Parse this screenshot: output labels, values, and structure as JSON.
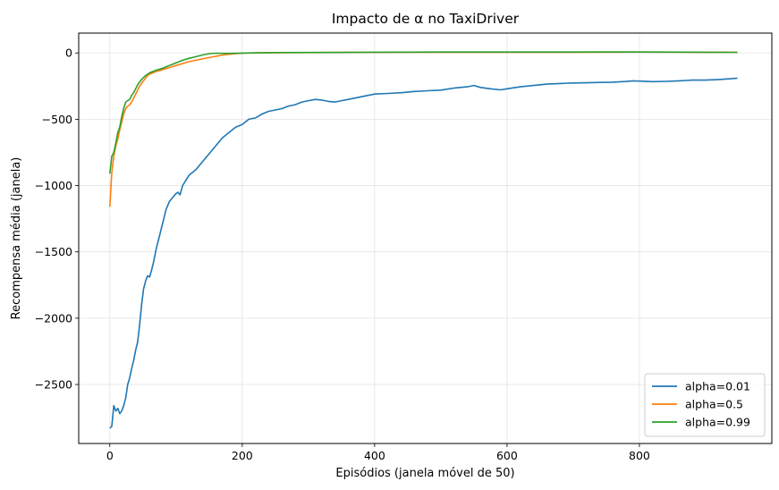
{
  "chart_data": {
    "type": "line",
    "title": "Impacto de α no TaxiDriver",
    "xlabel": "Episódios (janela móvel de 50)",
    "ylabel": "Recompensa média (janela)",
    "xlim": [
      -47,
      1000
    ],
    "ylim": [
      -2945,
      150
    ],
    "xticks": [
      0,
      200,
      400,
      600,
      800
    ],
    "yticks": [
      0,
      -500,
      -1000,
      -1500,
      -2000,
      -2500
    ],
    "xtick_labels": [
      "0",
      "200",
      "400",
      "600",
      "800"
    ],
    "ytick_labels": [
      "0",
      "−500",
      "−1000",
      "−1500",
      "−2000",
      "−2500"
    ],
    "grid": true,
    "legend_position": "lower-right",
    "series": [
      {
        "name": "alpha=0.01",
        "color": "#1f77b4",
        "points": [
          [
            0,
            -2830
          ],
          [
            3,
            -2815
          ],
          [
            6,
            -2660
          ],
          [
            9,
            -2700
          ],
          [
            12,
            -2680
          ],
          [
            15,
            -2720
          ],
          [
            18,
            -2700
          ],
          [
            21,
            -2660
          ],
          [
            24,
            -2600
          ],
          [
            27,
            -2500
          ],
          [
            30,
            -2450
          ],
          [
            33,
            -2380
          ],
          [
            36,
            -2320
          ],
          [
            39,
            -2240
          ],
          [
            42,
            -2180
          ],
          [
            45,
            -2050
          ],
          [
            48,
            -1900
          ],
          [
            51,
            -1780
          ],
          [
            54,
            -1720
          ],
          [
            57,
            -1680
          ],
          [
            60,
            -1690
          ],
          [
            63,
            -1640
          ],
          [
            66,
            -1580
          ],
          [
            70,
            -1480
          ],
          [
            75,
            -1380
          ],
          [
            80,
            -1280
          ],
          [
            85,
            -1180
          ],
          [
            90,
            -1120
          ],
          [
            95,
            -1090
          ],
          [
            100,
            -1060
          ],
          [
            103,
            -1050
          ],
          [
            106,
            -1070
          ],
          [
            110,
            -1000
          ],
          [
            115,
            -960
          ],
          [
            120,
            -920
          ],
          [
            130,
            -880
          ],
          [
            140,
            -820
          ],
          [
            150,
            -760
          ],
          [
            160,
            -700
          ],
          [
            170,
            -640
          ],
          [
            180,
            -600
          ],
          [
            190,
            -560
          ],
          [
            200,
            -540
          ],
          [
            210,
            -500
          ],
          [
            220,
            -490
          ],
          [
            230,
            -460
          ],
          [
            240,
            -440
          ],
          [
            250,
            -430
          ],
          [
            260,
            -420
          ],
          [
            270,
            -400
          ],
          [
            280,
            -390
          ],
          [
            290,
            -370
          ],
          [
            300,
            -360
          ],
          [
            310,
            -350
          ],
          [
            320,
            -355
          ],
          [
            330,
            -365
          ],
          [
            340,
            -370
          ],
          [
            350,
            -360
          ],
          [
            360,
            -350
          ],
          [
            370,
            -340
          ],
          [
            380,
            -330
          ],
          [
            390,
            -320
          ],
          [
            400,
            -310
          ],
          [
            420,
            -305
          ],
          [
            440,
            -300
          ],
          [
            460,
            -290
          ],
          [
            480,
            -285
          ],
          [
            500,
            -280
          ],
          [
            520,
            -265
          ],
          [
            540,
            -255
          ],
          [
            550,
            -245
          ],
          [
            560,
            -260
          ],
          [
            575,
            -270
          ],
          [
            590,
            -278
          ],
          [
            600,
            -270
          ],
          [
            620,
            -255
          ],
          [
            640,
            -245
          ],
          [
            660,
            -235
          ],
          [
            680,
            -230
          ],
          [
            700,
            -226
          ],
          [
            720,
            -225
          ],
          [
            740,
            -222
          ],
          [
            760,
            -220
          ],
          [
            780,
            -215
          ],
          [
            790,
            -210
          ],
          [
            800,
            -212
          ],
          [
            820,
            -216
          ],
          [
            840,
            -214
          ],
          [
            860,
            -210
          ],
          [
            880,
            -205
          ],
          [
            900,
            -205
          ],
          [
            920,
            -200
          ],
          [
            935,
            -195
          ],
          [
            948,
            -190
          ]
        ]
      },
      {
        "name": "alpha=0.5",
        "color": "#ff7f0e",
        "points": [
          [
            0,
            -1160
          ],
          [
            3,
            -900
          ],
          [
            6,
            -780
          ],
          [
            9,
            -700
          ],
          [
            12,
            -650
          ],
          [
            15,
            -580
          ],
          [
            18,
            -520
          ],
          [
            21,
            -460
          ],
          [
            24,
            -420
          ],
          [
            27,
            -400
          ],
          [
            30,
            -390
          ],
          [
            33,
            -370
          ],
          [
            36,
            -340
          ],
          [
            39,
            -310
          ],
          [
            42,
            -280
          ],
          [
            45,
            -250
          ],
          [
            48,
            -230
          ],
          [
            51,
            -210
          ],
          [
            54,
            -190
          ],
          [
            57,
            -170
          ],
          [
            60,
            -160
          ],
          [
            65,
            -150
          ],
          [
            70,
            -140
          ],
          [
            80,
            -125
          ],
          [
            90,
            -110
          ],
          [
            100,
            -95
          ],
          [
            110,
            -80
          ],
          [
            120,
            -65
          ],
          [
            130,
            -55
          ],
          [
            140,
            -45
          ],
          [
            150,
            -35
          ],
          [
            160,
            -25
          ],
          [
            170,
            -15
          ],
          [
            180,
            -10
          ],
          [
            190,
            -5
          ],
          [
            200,
            -2
          ],
          [
            220,
            0
          ],
          [
            250,
            2
          ],
          [
            300,
            3
          ],
          [
            400,
            5
          ],
          [
            500,
            5
          ],
          [
            600,
            6
          ],
          [
            700,
            6
          ],
          [
            800,
            7
          ],
          [
            900,
            6
          ],
          [
            948,
            5
          ]
        ]
      },
      {
        "name": "alpha=0.99",
        "color": "#2ca02c",
        "points": [
          [
            0,
            -910
          ],
          [
            3,
            -780
          ],
          [
            6,
            -750
          ],
          [
            9,
            -680
          ],
          [
            12,
            -600
          ],
          [
            15,
            -560
          ],
          [
            18,
            -480
          ],
          [
            21,
            -420
          ],
          [
            24,
            -370
          ],
          [
            27,
            -360
          ],
          [
            30,
            -350
          ],
          [
            33,
            -320
          ],
          [
            36,
            -300
          ],
          [
            39,
            -270
          ],
          [
            42,
            -240
          ],
          [
            45,
            -220
          ],
          [
            48,
            -200
          ],
          [
            51,
            -185
          ],
          [
            54,
            -170
          ],
          [
            57,
            -160
          ],
          [
            60,
            -150
          ],
          [
            65,
            -140
          ],
          [
            70,
            -130
          ],
          [
            80,
            -115
          ],
          [
            90,
            -95
          ],
          [
            100,
            -75
          ],
          [
            110,
            -55
          ],
          [
            120,
            -40
          ],
          [
            130,
            -28
          ],
          [
            140,
            -15
          ],
          [
            150,
            -5
          ],
          [
            160,
            -2
          ],
          [
            180,
            -3
          ],
          [
            200,
            -1
          ],
          [
            220,
            1
          ],
          [
            250,
            3
          ],
          [
            300,
            4
          ],
          [
            400,
            6
          ],
          [
            500,
            7
          ],
          [
            600,
            7
          ],
          [
            700,
            7
          ],
          [
            750,
            8
          ],
          [
            800,
            7
          ],
          [
            900,
            6
          ],
          [
            948,
            5
          ]
        ]
      }
    ]
  }
}
